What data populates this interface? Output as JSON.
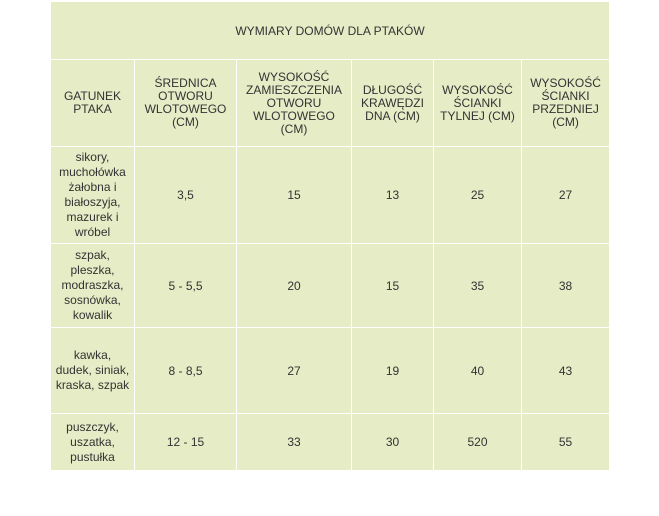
{
  "table": {
    "title": "WYMIARY DOMÓW DLA PTAKÓW",
    "headers": [
      "GATUNEK PTAKA",
      "ŚREDNICA OTWORU WLOTOWEGO (CM)",
      "WYSOKOŚĆ ZAMIESZCZENIA OTWORU WLOTOWEGO (CM)",
      "DŁUGOŚĆ KRAWĘDZI DNA (CM)",
      "WYSOKOŚĆ ŚCIANKI TYLNEJ (CM)",
      "WYSOKOŚĆ ŚCIANKI PRZEDNIEJ (CM)"
    ],
    "rows": [
      [
        "sikory, muchołówka żałobna i białoszyja, mazurek i wróbel",
        "3,5",
        "15",
        "13",
        "25",
        "27"
      ],
      [
        "szpak, pleszka, modraszka, sosnówka, kowalik",
        "5 - 5,5",
        "20",
        "15",
        "35",
        "38"
      ],
      [
        "kawka, dudek, siniak, kraska, szpak",
        "8 - 8,5",
        "27",
        "19",
        "40",
        "43"
      ],
      [
        "puszczyk, uszatka, pustułka",
        "12 - 15",
        "33",
        "30",
        "520",
        "55"
      ]
    ]
  }
}
